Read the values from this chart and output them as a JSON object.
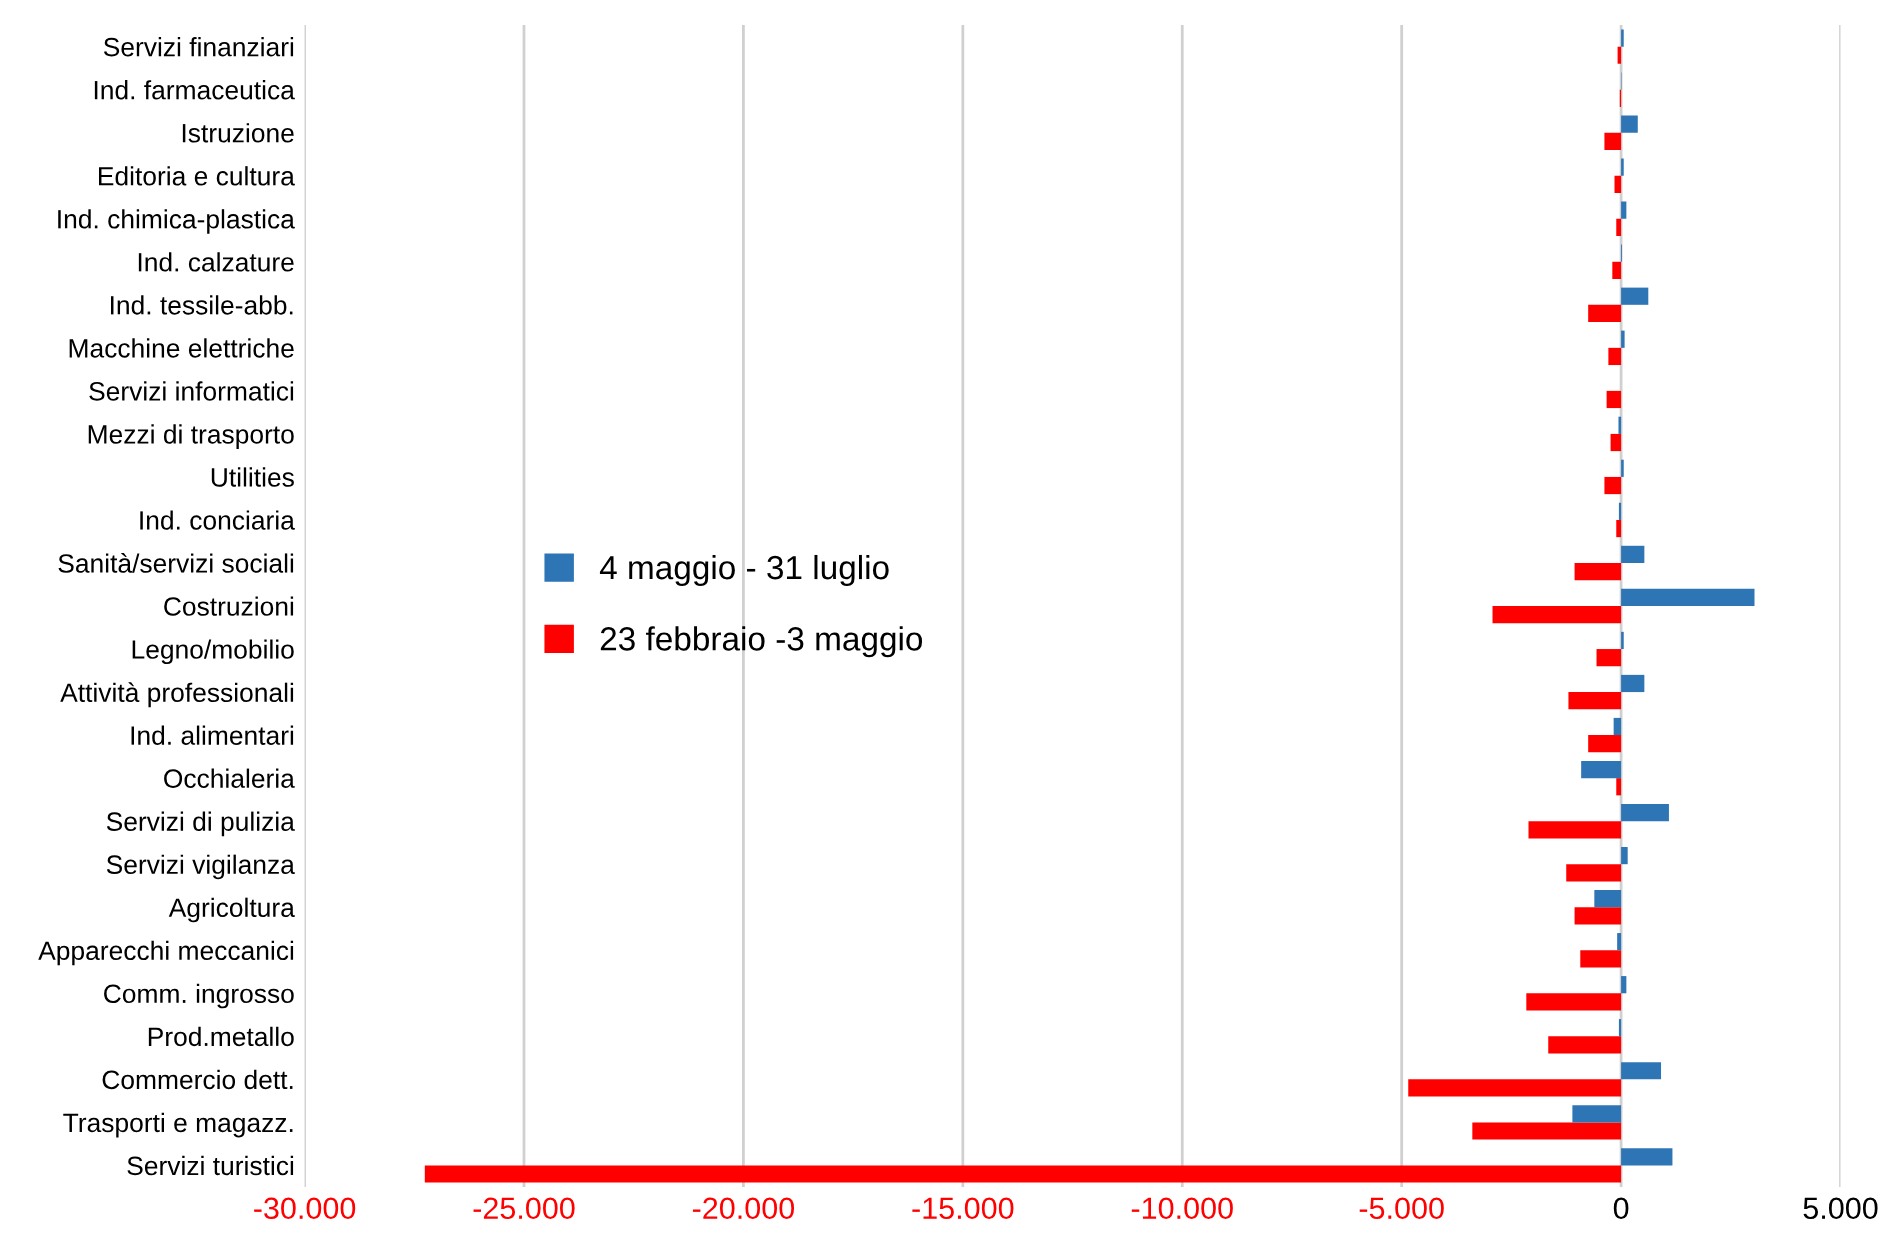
{
  "chart_data": {
    "type": "bar",
    "orientation": "horizontal",
    "categories": [
      "Servizi finanziari",
      "Ind. farmaceutica",
      "Istruzione",
      "Editoria e cultura",
      "Ind. chimica-plastica",
      "Ind. calzature",
      "Ind. tessile-abb.",
      "Macchine elettriche",
      "Servizi informatici",
      "Mezzi di trasporto",
      "Utilities",
      "Ind. conciaria",
      "Sanità/servizi sociali",
      "Costruzioni",
      "Legno/mobilio",
      "Attività professionali",
      "Ind. alimentari",
      "Occhialeria",
      "Servizi di pulizia",
      "Servizi vigilanza",
      "Agricoltura",
      "Apparecchi meccanici",
      "Comm. ingrosso",
      "Prod.metallo",
      "Commercio dett.",
      "Trasporti e magazz.",
      "Servizi turistici"
    ],
    "series": [
      {
        "name": "23 febbraio -3 maggio",
        "color": "#ff0000",
        "values": [
          -80,
          -30,
          -380,
          -150,
          -110,
          -200,
          -750,
          -290,
          -330,
          -240,
          -380,
          -110,
          -1060,
          -2930,
          -560,
          -1200,
          -750,
          -110,
          -2110,
          -1250,
          -1060,
          -930,
          -2160,
          -1660,
          -4850,
          -3390,
          -27260
        ]
      },
      {
        "name": "4 maggio - 31 luglio",
        "color": "#2e75b6",
        "values": [
          60,
          10,
          380,
          60,
          120,
          20,
          620,
          80,
          0,
          -60,
          60,
          -50,
          530,
          3040,
          60,
          530,
          -170,
          -910,
          1090,
          150,
          -610,
          -90,
          120,
          -50,
          910,
          -1110,
          1170
        ]
      }
    ],
    "xlim": [
      -30000,
      5000
    ],
    "xticks": [
      {
        "value": -30000,
        "label": "-30.000"
      },
      {
        "value": -25000,
        "label": "-25.000"
      },
      {
        "value": -20000,
        "label": "-20.000"
      },
      {
        "value": -15000,
        "label": "-15.000"
      },
      {
        "value": -10000,
        "label": "-10.000"
      },
      {
        "value": -5000,
        "label": "-5.000"
      },
      0,
      {
        "value": 5000,
        "label": "5.000"
      }
    ],
    "grid": "x",
    "legend": "center"
  }
}
